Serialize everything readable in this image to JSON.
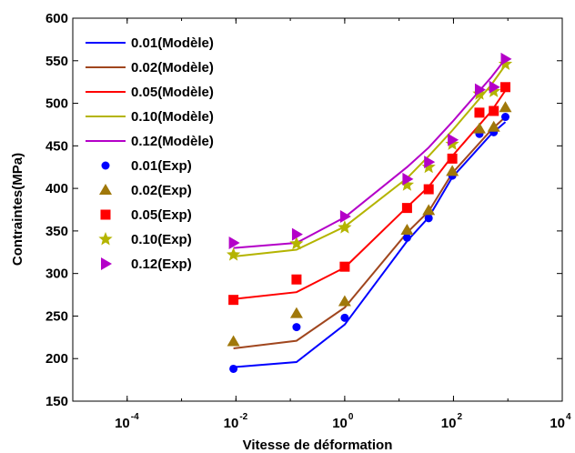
{
  "chart_data": {
    "type": "line",
    "title": "",
    "xlabel": "Vitesse de déformation",
    "ylabel": "Contraintes(MPa)",
    "x_scale": "log",
    "xlim": [
      1e-05,
      10000
    ],
    "ylim": [
      150,
      600
    ],
    "x_ticks": [
      {
        "value": 0.0001,
        "base": "10",
        "exp": "-4"
      },
      {
        "value": 0.01,
        "base": "10",
        "exp": "-2"
      },
      {
        "value": 1,
        "base": "10",
        "exp": "0"
      },
      {
        "value": 100,
        "base": "10",
        "exp": "2"
      },
      {
        "value": 10000,
        "base": "10",
        "exp": "4"
      }
    ],
    "y_ticks": [
      "150",
      "200",
      "250",
      "300",
      "350",
      "400",
      "450",
      "500",
      "550",
      "600"
    ],
    "grid": false,
    "legend_position": "top-left",
    "model_series": [
      {
        "name": "0.01(Modèle)",
        "color": "#0000ff",
        "points": [
          [
            0.009,
            190
          ],
          [
            0.13,
            196
          ],
          [
            1,
            240
          ],
          [
            14,
            338
          ],
          [
            35,
            366
          ],
          [
            95,
            413
          ],
          [
            500,
            464
          ],
          [
            900,
            478
          ]
        ]
      },
      {
        "name": "0.02(Modèle)",
        "color": "#a0461e",
        "points": [
          [
            0.009,
            212
          ],
          [
            0.13,
            221
          ],
          [
            1,
            260
          ],
          [
            14,
            348
          ],
          [
            35,
            373
          ],
          [
            95,
            418
          ],
          [
            500,
            469
          ],
          [
            900,
            484
          ]
        ]
      },
      {
        "name": "0.05(Modèle)",
        "color": "#ff0000",
        "points": [
          [
            0.009,
            270
          ],
          [
            0.13,
            278
          ],
          [
            1,
            307
          ],
          [
            14,
            378
          ],
          [
            35,
            402
          ],
          [
            95,
            438
          ],
          [
            500,
            491
          ],
          [
            900,
            515
          ]
        ]
      },
      {
        "name": "0.10(Modèle)",
        "color": "#b4b400",
        "points": [
          [
            0.009,
            320
          ],
          [
            0.13,
            328
          ],
          [
            1,
            355
          ],
          [
            14,
            412
          ],
          [
            35,
            438
          ],
          [
            95,
            468
          ],
          [
            500,
            522
          ],
          [
            900,
            545
          ]
        ]
      },
      {
        "name": "0.12(Modèle)",
        "color": "#b400c8",
        "points": [
          [
            0.009,
            330
          ],
          [
            0.13,
            336
          ],
          [
            1,
            366
          ],
          [
            14,
            425
          ],
          [
            35,
            448
          ],
          [
            95,
            478
          ],
          [
            500,
            531
          ],
          [
            900,
            552
          ]
        ]
      }
    ],
    "exp_series": [
      {
        "name": "0.01(Exp)",
        "color": "#0000ff",
        "marker": "circle",
        "points": [
          [
            0.009,
            188
          ],
          [
            0.13,
            237
          ],
          [
            1,
            248
          ],
          [
            14,
            342
          ],
          [
            35,
            365
          ],
          [
            95,
            415
          ],
          [
            300,
            464
          ],
          [
            550,
            466
          ],
          [
            900,
            484
          ]
        ]
      },
      {
        "name": "0.02(Exp)",
        "color": "#a0780a",
        "marker": "triangle",
        "points": [
          [
            0.009,
            220
          ],
          [
            0.13,
            253
          ],
          [
            1,
            267
          ],
          [
            14,
            351
          ],
          [
            35,
            374
          ],
          [
            95,
            420
          ],
          [
            300,
            470
          ],
          [
            550,
            472
          ],
          [
            900,
            495
          ]
        ]
      },
      {
        "name": "0.05(Exp)",
        "color": "#ff0000",
        "marker": "square",
        "points": [
          [
            0.009,
            269
          ],
          [
            0.13,
            293
          ],
          [
            1,
            308
          ],
          [
            14,
            377
          ],
          [
            35,
            399
          ],
          [
            95,
            435
          ],
          [
            300,
            489
          ],
          [
            550,
            491
          ],
          [
            900,
            519
          ]
        ]
      },
      {
        "name": "0.10(Exp)",
        "color": "#b4b400",
        "marker": "star",
        "points": [
          [
            0.009,
            322
          ],
          [
            0.13,
            335
          ],
          [
            1,
            354
          ],
          [
            14,
            404
          ],
          [
            35,
            425
          ],
          [
            95,
            452
          ],
          [
            300,
            511
          ],
          [
            550,
            514
          ],
          [
            900,
            546
          ]
        ]
      },
      {
        "name": "0.12(Exp)",
        "color": "#b400c8",
        "marker": "triangle-right",
        "points": [
          [
            0.009,
            336
          ],
          [
            0.13,
            346
          ],
          [
            1,
            367
          ],
          [
            14,
            411
          ],
          [
            35,
            431
          ],
          [
            95,
            457
          ],
          [
            300,
            516
          ],
          [
            550,
            519
          ],
          [
            900,
            552
          ]
        ]
      }
    ]
  }
}
